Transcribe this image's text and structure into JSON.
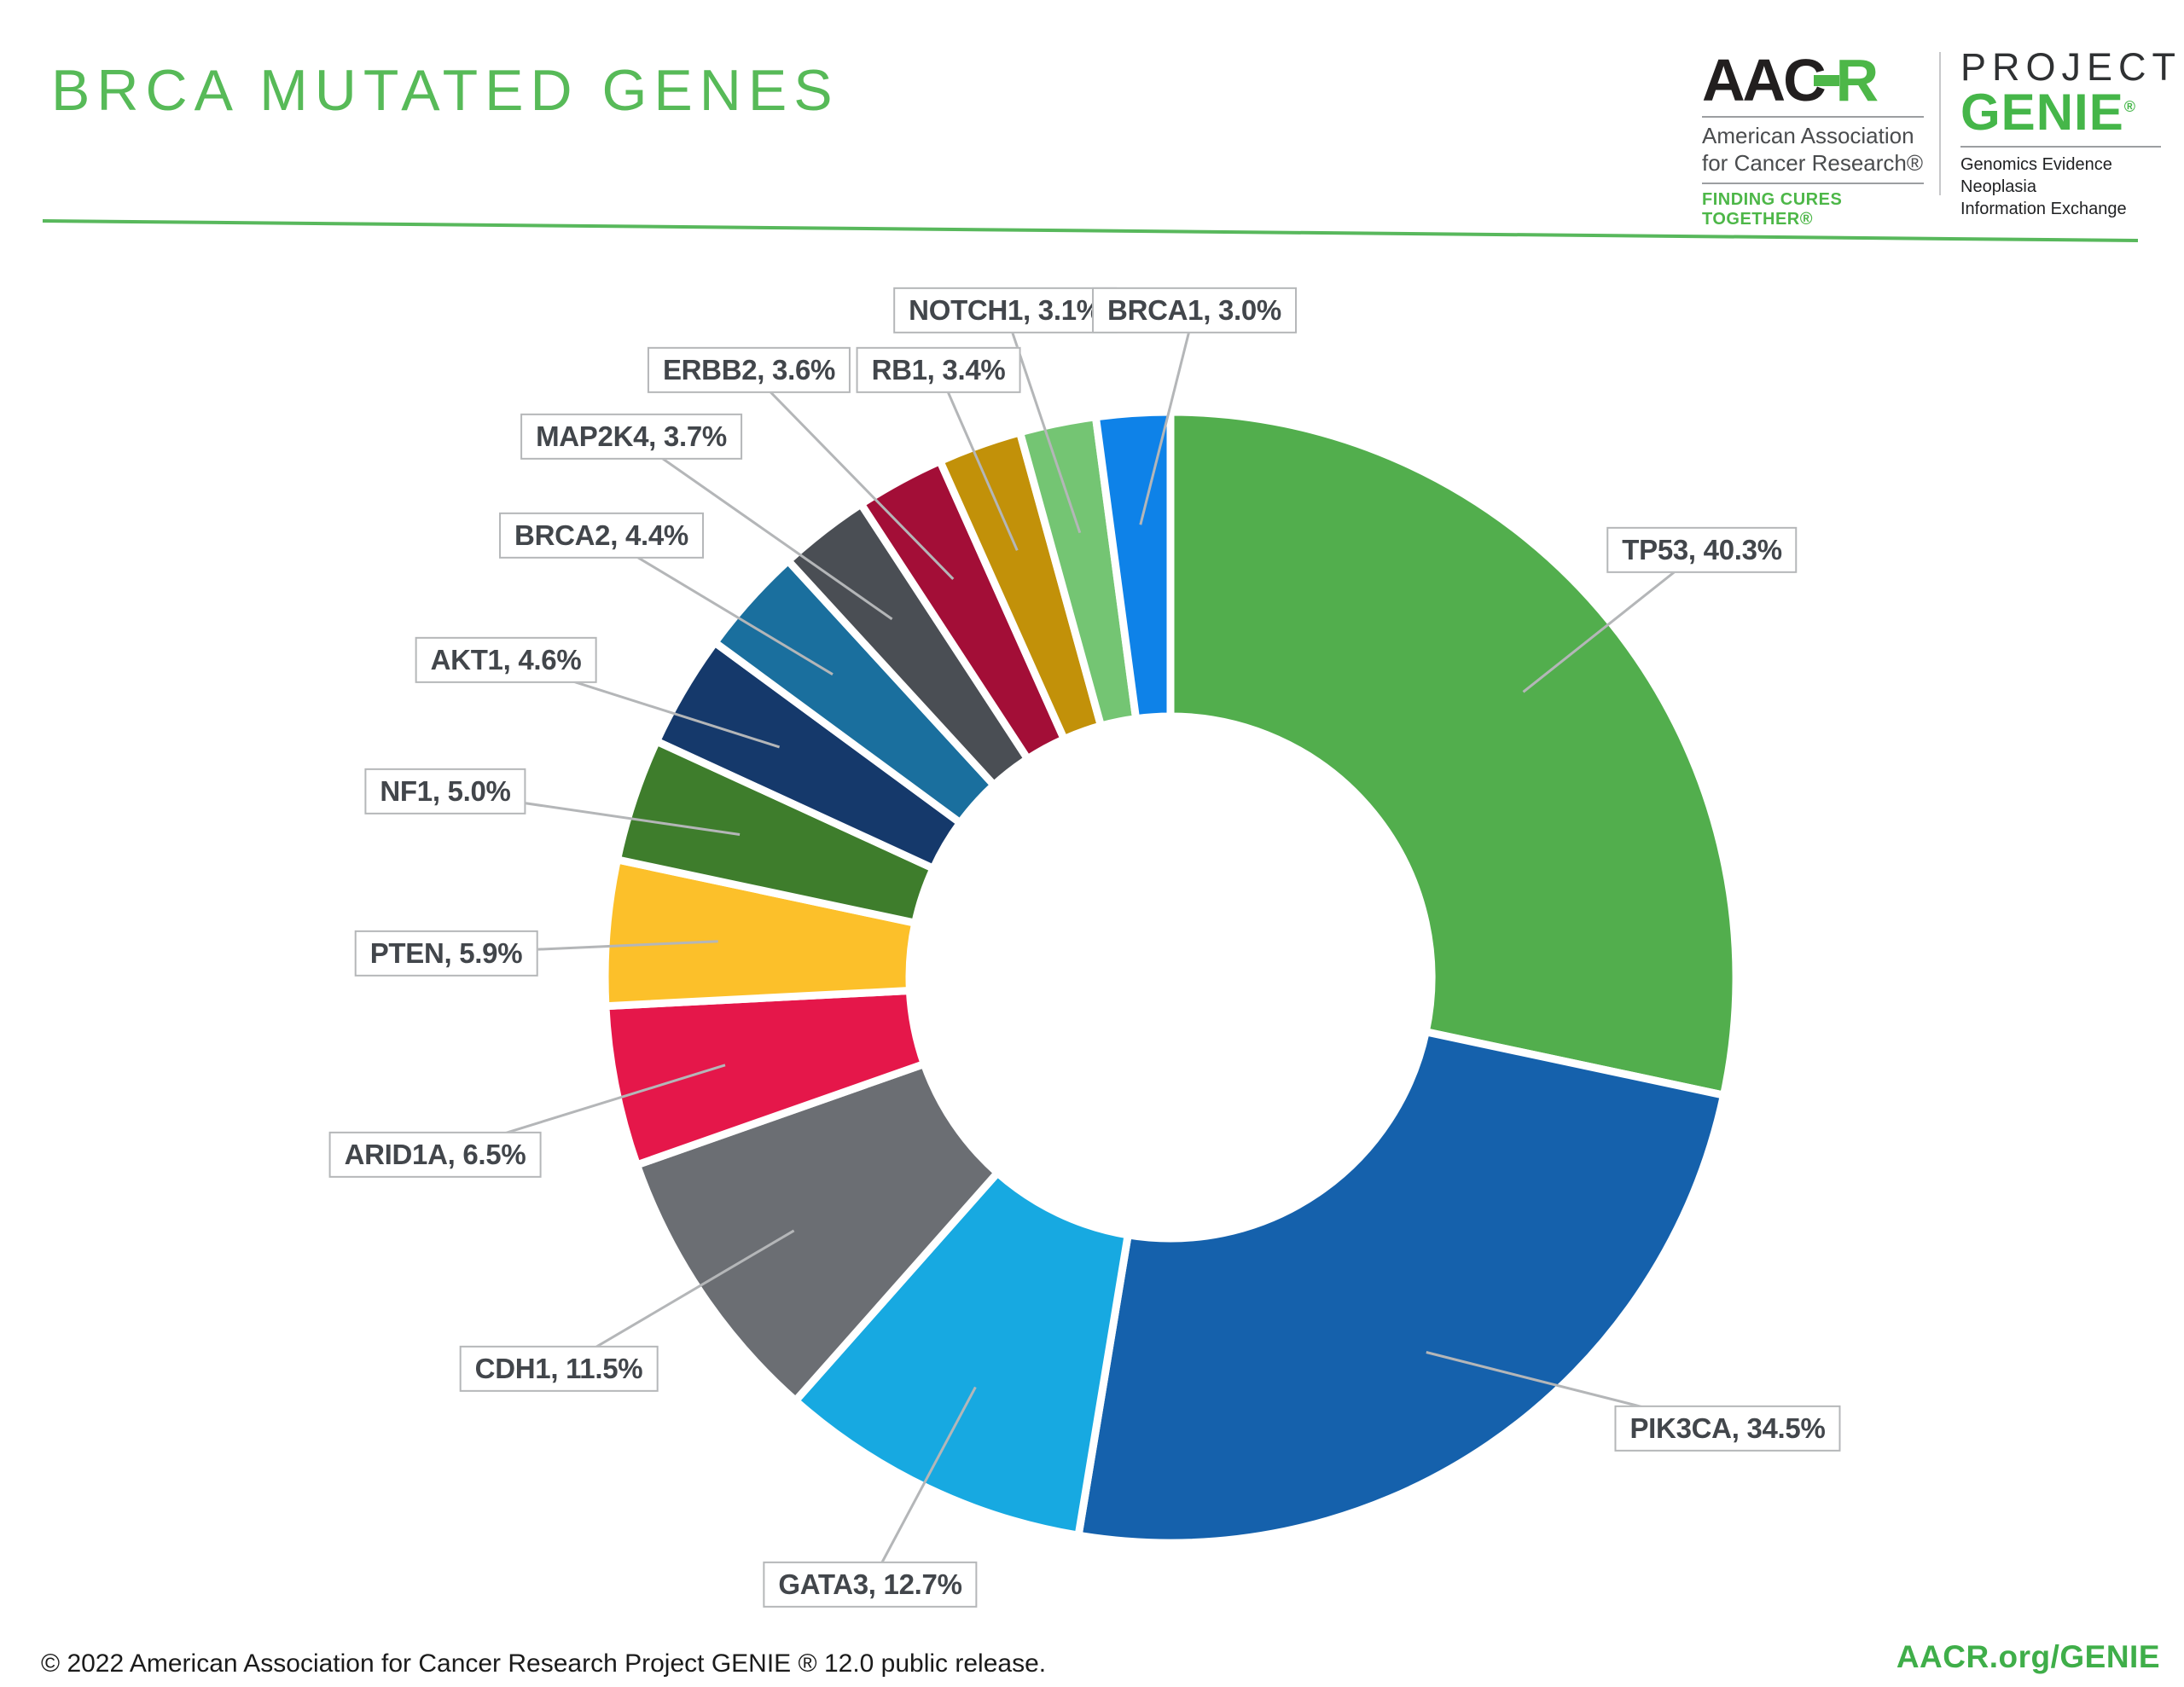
{
  "header": {
    "title": "BRCA MUTATED GENES",
    "aacr_logo": {
      "acronym_prefix": "AAC",
      "acronym_suffix": "R",
      "name_line1": "American Association",
      "name_line2": "for Cancer Research®",
      "tagline": "FINDING CURES TOGETHER®"
    },
    "genie_logo": {
      "project": "PROJECT",
      "name": "GENIE",
      "registered_mark": "®",
      "subtitle_line1": "Genomics Evidence Neoplasia",
      "subtitle_line2": "Information Exchange"
    }
  },
  "chart_data": {
    "type": "pie",
    "variant": "donut",
    "title": "BRCA MUTATED GENES",
    "legend_position": "none",
    "start_at": "12 o'clock",
    "direction": "clockwise",
    "label_style": "boxed callouts with leader lines, format: GENE, value%",
    "gap_color": "#ffffff",
    "slices": [
      {
        "gene": "TP53",
        "value": 40.3,
        "label": "TP53, 40.3%",
        "color": "#52AE4D"
      },
      {
        "gene": "PIK3CA",
        "value": 34.5,
        "label": "PIK3CA, 34.5%",
        "color": "#1561AC"
      },
      {
        "gene": "GATA3",
        "value": 12.7,
        "label": "GATA3, 12.7%",
        "color": "#17A9E1"
      },
      {
        "gene": "CDH1",
        "value": 11.5,
        "label": "CDH1, 11.5%",
        "color": "#6B6E73"
      },
      {
        "gene": "ARID1A",
        "value": 6.5,
        "label": "ARID1A, 6.5%",
        "color": "#E5174A"
      },
      {
        "gene": "PTEN",
        "value": 5.9,
        "label": "PTEN, 5.9%",
        "color": "#FCC02A"
      },
      {
        "gene": "NF1",
        "value": 5.0,
        "label": "NF1, 5.0%",
        "color": "#3E7D2C"
      },
      {
        "gene": "AKT1",
        "value": 4.6,
        "label": "AKT1, 4.6%",
        "color": "#15396B"
      },
      {
        "gene": "BRCA2",
        "value": 4.4,
        "label": "BRCA2, 4.4%",
        "color": "#1A6F9E"
      },
      {
        "gene": "MAP2K4",
        "value": 3.7,
        "label": "MAP2K4, 3.7%",
        "color": "#4A4E54"
      },
      {
        "gene": "ERBB2",
        "value": 3.6,
        "label": "ERBB2, 3.6%",
        "color": "#A30E37"
      },
      {
        "gene": "RB1",
        "value": 3.4,
        "label": "RB1, 3.4%",
        "color": "#C29109"
      },
      {
        "gene": "NOTCH1",
        "value": 3.1,
        "label": "NOTCH1, 3.1%",
        "color": "#74C573"
      },
      {
        "gene": "BRCA1",
        "value": 3.0,
        "label": "BRCA1, 3.0%",
        "color": "#0E82E8"
      }
    ],
    "accent_color": "#57BA58",
    "leader_line_color": "#B4B6B8",
    "label_border_color": "#B5B7B9",
    "label_text_color": "#42464B"
  },
  "footer": {
    "copyright": "© 2022 American Association for Cancer Research Project GENIE ® 12.0 public release.",
    "link": "AACR.org/GENIE"
  }
}
